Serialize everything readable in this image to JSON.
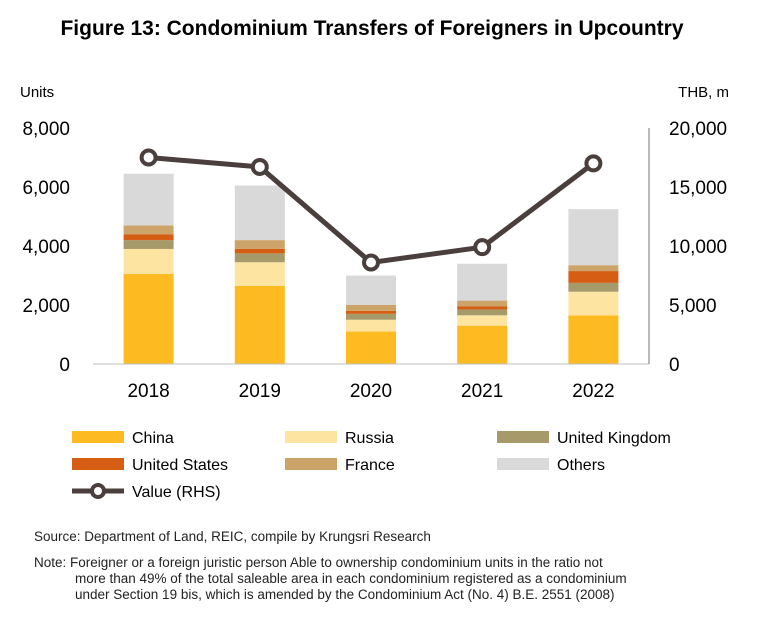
{
  "chart_data": {
    "type": "bar",
    "stacked": true,
    "title": "Figure 13: Condominium  Transfers of Foreigners in Upcountry",
    "ylabel_left": "Units",
    "ylabel_right": "THB, m",
    "categories": [
      "2018",
      "2019",
      "2020",
      "2021",
      "2022"
    ],
    "ylim_left": [
      0,
      8000
    ],
    "ylim_right": [
      0,
      20000
    ],
    "yticks_left": [
      "0",
      "2,000",
      "4,000",
      "6,000",
      "8,000"
    ],
    "yticks_right": [
      "0",
      "5,000",
      "10,000",
      "15,000",
      "20,000"
    ],
    "series": [
      {
        "name": "China",
        "color": "#FDBA21",
        "values": [
          3050,
          2650,
          1100,
          1300,
          1650
        ]
      },
      {
        "name": "Russia",
        "color": "#FDE4A0",
        "values": [
          850,
          800,
          400,
          350,
          800
        ]
      },
      {
        "name": "United Kingdom",
        "color": "#A69A6A",
        "values": [
          300,
          300,
          200,
          200,
          300
        ]
      },
      {
        "name": "United States",
        "color": "#D55E14",
        "values": [
          200,
          150,
          100,
          100,
          400
        ]
      },
      {
        "name": "France",
        "color": "#CCA469",
        "values": [
          300,
          300,
          200,
          200,
          200
        ]
      },
      {
        "name": "Others",
        "color": "#D9D9D9",
        "values": [
          1750,
          1850,
          1000,
          1250,
          1900
        ]
      }
    ],
    "line_series": {
      "name": "Value (RHS)",
      "color": "#4B3F3D",
      "axis": "right",
      "values": [
        17500,
        16700,
        8600,
        9900,
        17000
      ]
    },
    "legend_position": "bottom",
    "grid": false
  },
  "footer": {
    "source": "Source: Department of Land, REIC, compile by Krungsri Research",
    "note_lines": [
      "Note: Foreigner or a foreign juristic person Able to ownership condominium units in the ratio not",
      "more than 49% of the total saleable area in each condominium registered as a condominium",
      "under Section 19 bis, which is amended by the Condominium Act (No. 4) B.E. 2551 (2008)"
    ]
  }
}
